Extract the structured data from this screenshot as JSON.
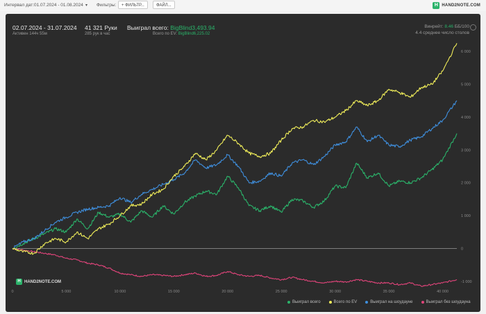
{
  "toolbar": {
    "date_label": "Интервал дат:",
    "date_value": "01.07.2024 - 01.08.2024",
    "filters_label": "Фильтры:",
    "filter_button": "+ ФИЛЬТР...",
    "file_button": "ФАЙЛ..."
  },
  "logo": {
    "text": "HAND2NOTE.COM",
    "mark": "H"
  },
  "header": {
    "period": "02.07.2024 - 31.07.2024",
    "active": "Активен 144ч 55м",
    "hands": "41 321 Руки",
    "hands_per_hour": "285 рук в час",
    "won_label": "Выиграл всего:",
    "won_value": "BigBlind3,493.94",
    "ev_label": "Всего по EV:",
    "ev_value": "BigBlind6,225.02",
    "winrate_label": "Винрейт:",
    "winrate_value": "8.46",
    "winrate_unit": "ББ/100",
    "tables": "4.4 среднее число столов"
  },
  "watermark": "HAND2NOTE.COM",
  "chart_data": {
    "type": "line",
    "x_ticks": [
      "0",
      "5 000",
      "10 000",
      "15 000",
      "20 000",
      "25 000",
      "30 000",
      "35 000",
      "40 000"
    ],
    "y_ticks": [
      "6 000",
      "5 000",
      "4 000",
      "3 000",
      "2 000",
      "1 000",
      "0",
      "-1 000"
    ],
    "xlim": [
      0,
      41321
    ],
    "ylim": [
      -1300,
      6300
    ],
    "colors": {
      "won": "#2bb36a",
      "ev": "#f2ef5a",
      "showdown": "#3f8fde",
      "nonshowdown": "#e0447a"
    },
    "series": [
      {
        "name": "Выиграл всего",
        "key": "won",
        "x": [
          0,
          1000,
          2000,
          3000,
          4000,
          5000,
          6000,
          7000,
          8000,
          9000,
          10000,
          11000,
          12000,
          13000,
          14000,
          15000,
          16000,
          17000,
          18000,
          19000,
          20000,
          21000,
          22000,
          23000,
          24000,
          25000,
          26000,
          27000,
          28000,
          29000,
          30000,
          31000,
          32000,
          33000,
          34000,
          35000,
          36000,
          37000,
          38000,
          39000,
          40000,
          41321
        ],
        "y": [
          0,
          150,
          300,
          450,
          600,
          500,
          900,
          600,
          1100,
          950,
          1050,
          800,
          1150,
          950,
          1300,
          1050,
          1400,
          1600,
          1750,
          1650,
          2200,
          1850,
          1300,
          1150,
          1300,
          1100,
          1500,
          1450,
          1250,
          1450,
          1900,
          1850,
          2600,
          2150,
          2300,
          1900,
          2050,
          2000,
          2150,
          2400,
          2700,
          3500
        ]
      },
      {
        "name": "Всего по EV",
        "key": "ev",
        "x": [
          0,
          1000,
          2000,
          3000,
          4000,
          5000,
          6000,
          7000,
          8000,
          9000,
          10000,
          11000,
          12000,
          13000,
          14000,
          15000,
          16000,
          17000,
          18000,
          19000,
          20000,
          21000,
          22000,
          23000,
          24000,
          25000,
          26000,
          27000,
          28000,
          29000,
          30000,
          31000,
          32000,
          33000,
          34000,
          35000,
          36000,
          37000,
          38000,
          39000,
          40000,
          41321
        ],
        "y": [
          0,
          -100,
          -150,
          150,
          300,
          200,
          500,
          300,
          600,
          750,
          1000,
          1300,
          1350,
          1650,
          1800,
          2200,
          2500,
          2900,
          2700,
          3000,
          3450,
          3200,
          2900,
          2800,
          2900,
          3300,
          3650,
          3700,
          3900,
          3850,
          4000,
          4200,
          4500,
          4350,
          4500,
          4850,
          4750,
          4600,
          4900,
          5000,
          5400,
          6250
        ]
      },
      {
        "name": "Выиграл на шоудауне",
        "key": "showdown",
        "x": [
          0,
          1000,
          2000,
          3000,
          4000,
          5000,
          6000,
          7000,
          8000,
          9000,
          10000,
          11000,
          12000,
          13000,
          14000,
          15000,
          16000,
          17000,
          18000,
          19000,
          20000,
          21000,
          22000,
          23000,
          24000,
          25000,
          26000,
          27000,
          28000,
          29000,
          30000,
          31000,
          32000,
          33000,
          34000,
          35000,
          36000,
          37000,
          38000,
          39000,
          40000,
          41321
        ],
        "y": [
          0,
          200,
          300,
          550,
          800,
          950,
          1100,
          1200,
          1250,
          1300,
          1550,
          1400,
          1650,
          1800,
          1950,
          2100,
          2300,
          2700,
          2450,
          2550,
          2850,
          2500,
          2000,
          2050,
          2300,
          2200,
          2600,
          2700,
          2550,
          2800,
          3150,
          3250,
          3700,
          3250,
          3450,
          3150,
          3100,
          3300,
          3400,
          3650,
          3900,
          4500
        ]
      },
      {
        "name": "Выиграл без шоудауна",
        "key": "nonshowdown",
        "x": [
          0,
          1000,
          2000,
          3000,
          4000,
          5000,
          6000,
          7000,
          8000,
          9000,
          10000,
          11000,
          12000,
          13000,
          14000,
          15000,
          16000,
          17000,
          18000,
          19000,
          20000,
          21000,
          22000,
          23000,
          24000,
          25000,
          26000,
          27000,
          28000,
          29000,
          30000,
          31000,
          32000,
          33000,
          34000,
          35000,
          36000,
          37000,
          38000,
          39000,
          40000,
          41321
        ],
        "y": [
          0,
          -50,
          -100,
          -150,
          -200,
          -300,
          -350,
          -450,
          -500,
          -600,
          -750,
          -800,
          -850,
          -800,
          -820,
          -850,
          -800,
          -750,
          -850,
          -820,
          -700,
          -800,
          -850,
          -820,
          -900,
          -950,
          -880,
          -950,
          -1000,
          -1050,
          -1000,
          -1020,
          -950,
          -1000,
          -1050,
          -1050,
          -1100,
          -1050,
          -1150,
          -1100,
          -1050,
          -950
        ]
      }
    ]
  }
}
